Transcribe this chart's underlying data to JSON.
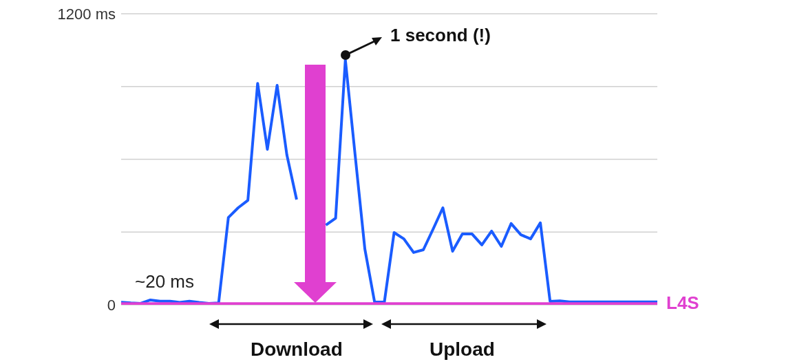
{
  "chart_data": {
    "type": "line",
    "categories": [
      null,
      null,
      null,
      null,
      null,
      null,
      null,
      null,
      null,
      null,
      null,
      null,
      null,
      null,
      null,
      null,
      null,
      null,
      null,
      null,
      null,
      null,
      null,
      null,
      null,
      null,
      null,
      null,
      null,
      null,
      null,
      null,
      null,
      null,
      null,
      null,
      null,
      null,
      null,
      null,
      null,
      null,
      null,
      null,
      null,
      null,
      null,
      null,
      null,
      null,
      null,
      null,
      null,
      null,
      null,
      null
    ],
    "series": [
      {
        "color": "#1a5cff",
        "values": [
          11,
          8,
          6,
          20,
          15,
          15,
          10,
          15,
          10,
          6,
          8,
          360,
          400,
          431,
          913,
          641,
          905,
          618,
          434,
          null,
          null,
          329,
          357,
          1010,
          618,
          230,
          11,
          11,
          298,
          272,
          216,
          227,
          312,
          400,
          221,
          292,
          292,
          247,
          304,
          241,
          335,
          289,
          272,
          338,
          14,
          16,
          12,
          12,
          12,
          12,
          12,
          12,
          12,
          12,
          12,
          12
        ]
      },
      {
        "name": "L4S",
        "color": "#e040d0",
        "values": [
          5,
          5,
          5,
          5,
          5,
          5,
          5,
          5,
          5,
          5,
          5,
          5,
          5,
          5,
          5,
          5,
          5,
          5,
          5,
          5,
          5,
          5,
          5,
          5,
          5,
          5,
          5,
          5,
          5,
          5,
          5,
          5,
          5,
          5,
          5,
          5,
          5,
          5,
          5,
          5,
          5,
          5,
          5,
          5,
          5,
          5,
          5,
          5,
          5,
          5,
          5,
          5,
          5,
          5,
          5,
          5
        ]
      }
    ],
    "ylim": [
      0,
      1200
    ],
    "yticks": [
      {
        "value": 0,
        "label": "0"
      },
      {
        "value": 300,
        "label": null
      },
      {
        "value": 600,
        "label": null
      },
      {
        "value": 900,
        "label": null
      },
      {
        "value": 1200,
        "label": "1200 ms"
      }
    ],
    "grid": "y",
    "legend": false,
    "marker": "none",
    "line_style": "solid",
    "annotations": [
      "~20 ms",
      "1 second (!)",
      "Download",
      "Upload"
    ]
  }
}
